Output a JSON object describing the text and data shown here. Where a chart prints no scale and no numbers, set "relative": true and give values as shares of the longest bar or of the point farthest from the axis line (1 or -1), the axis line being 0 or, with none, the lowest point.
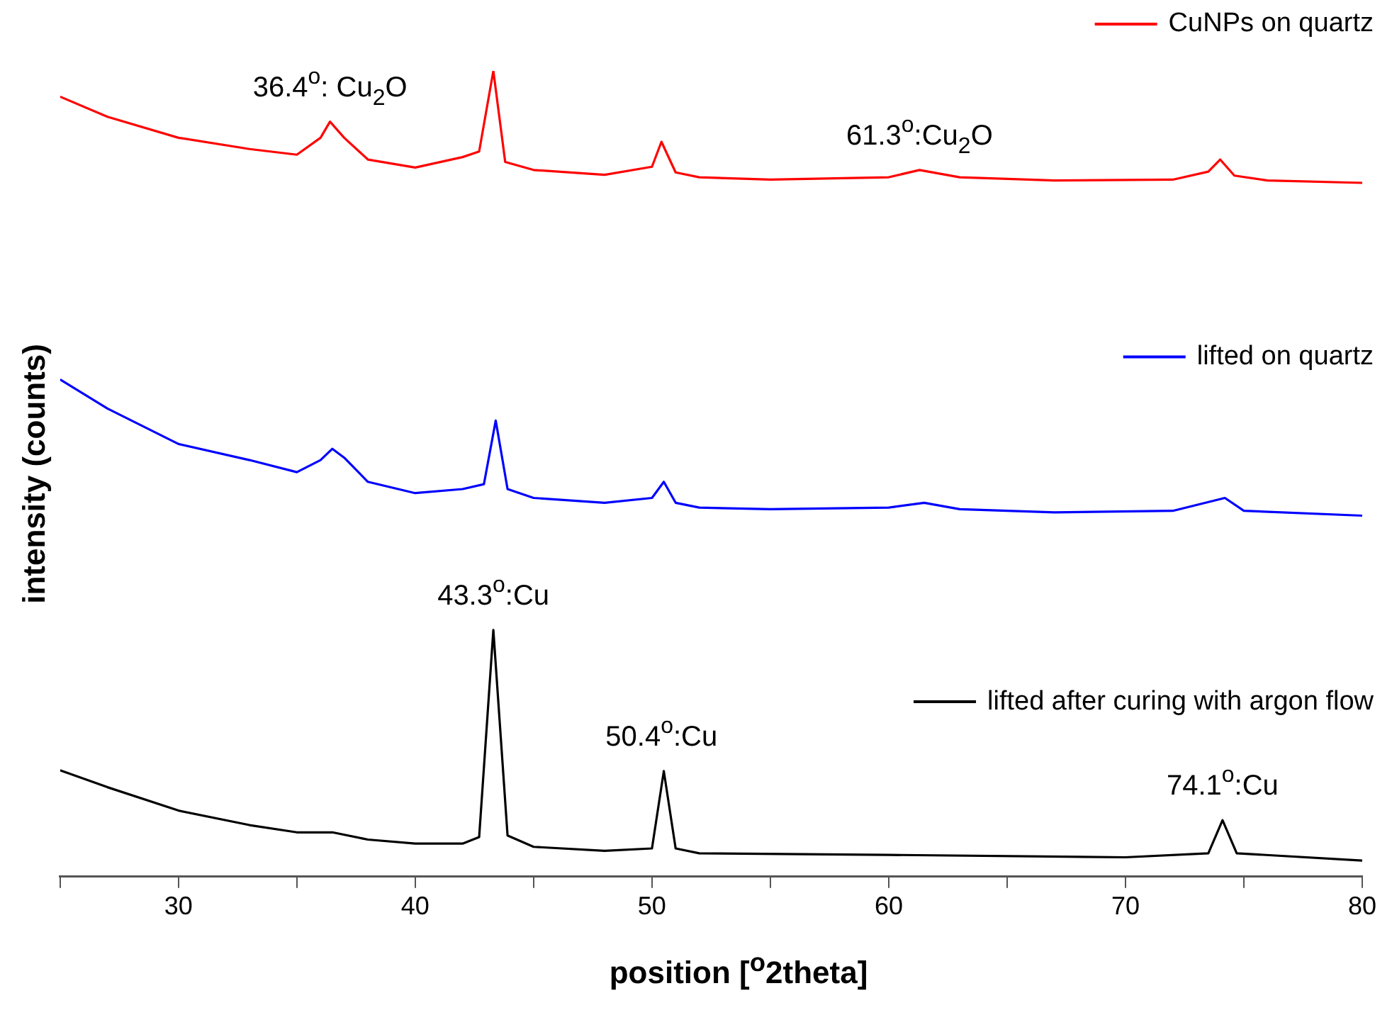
{
  "chart_data": {
    "type": "line",
    "relative": true,
    "xlabel": "position [$^{o}$2theta]",
    "ylabel": "intensity (counts)",
    "xlim": [
      25,
      80
    ],
    "xticks": [
      {
        "value": 25,
        "label": null
      },
      30,
      {
        "value": 35,
        "label": null
      },
      40,
      {
        "value": 45,
        "label": null
      },
      50,
      {
        "value": 55,
        "label": null
      },
      60,
      {
        "value": 65,
        "label": null
      },
      70,
      {
        "value": 75,
        "label": null
      },
      80
    ],
    "grid": false,
    "legend": "right",
    "series": [
      {
        "name": "CuNPs on quartz",
        "color": "#ff0000",
        "x": [
          25,
          27,
          30,
          33,
          35,
          36,
          36.4,
          37,
          38,
          40,
          42,
          42.7,
          43.3,
          43.8,
          45,
          48,
          50,
          50.4,
          51,
          52,
          55,
          60,
          61.3,
          63,
          67,
          72,
          73.5,
          74,
          74.6,
          76,
          80
        ],
        "values": [
          0.968,
          0.943,
          0.917,
          0.903,
          0.896,
          0.917,
          0.937,
          0.917,
          0.89,
          0.88,
          0.893,
          0.9,
          1,
          0.887,
          0.877,
          0.871,
          0.881,
          0.912,
          0.874,
          0.868,
          0.865,
          0.868,
          0.877,
          0.868,
          0.864,
          0.865,
          0.875,
          0.89,
          0.87,
          0.864,
          0.861
        ]
      },
      {
        "name": "lifted on quartz",
        "color": "#0000ff",
        "x": [
          25,
          27,
          30,
          33,
          35,
          36,
          36.5,
          37,
          38,
          40,
          42,
          42.9,
          43.4,
          43.9,
          45,
          48,
          50,
          50.5,
          51,
          52,
          55,
          60,
          61.5,
          63,
          67,
          72,
          74.2,
          75,
          80
        ],
        "values": [
          0.617,
          0.581,
          0.537,
          0.517,
          0.502,
          0.517,
          0.531,
          0.52,
          0.49,
          0.476,
          0.481,
          0.487,
          0.566,
          0.481,
          0.47,
          0.464,
          0.47,
          0.49,
          0.464,
          0.458,
          0.456,
          0.458,
          0.464,
          0.456,
          0.452,
          0.454,
          0.47,
          0.454,
          0.448
        ]
      },
      {
        "name": "lifted after curing with argon flow",
        "color": "#000000",
        "x": [
          25,
          27,
          30,
          33,
          35,
          36.5,
          38,
          40,
          42,
          42.7,
          43.3,
          43.9,
          45,
          48,
          50,
          50.5,
          51,
          52,
          60,
          70,
          73.5,
          74.1,
          74.7,
          80
        ],
        "values": [
          0.132,
          0.111,
          0.082,
          0.064,
          0.055,
          0.055,
          0.046,
          0.041,
          0.041,
          0.049,
          0.306,
          0.051,
          0.037,
          0.032,
          0.035,
          0.131,
          0.035,
          0.029,
          0.027,
          0.024,
          0.029,
          0.07,
          0.029,
          0.02
        ]
      }
    ],
    "annotations": [
      {
        "text": "36.4$^{o}$: Cu$_{2}$O",
        "x": 36.4,
        "y": 0.937
      },
      {
        "text": "61.3$^{o}$:Cu$_{2}$O",
        "x": 61.3,
        "y": 0.877
      },
      {
        "text": "43.3$^{o}$:Cu",
        "x": 43.3,
        "y": 0.306
      },
      {
        "text": "50.4$^{o}$:Cu",
        "x": 50.4,
        "y": 0.131
      },
      {
        "text": "74.1$^{o}$:Cu",
        "x": 74.1,
        "y": 0.07
      }
    ]
  }
}
